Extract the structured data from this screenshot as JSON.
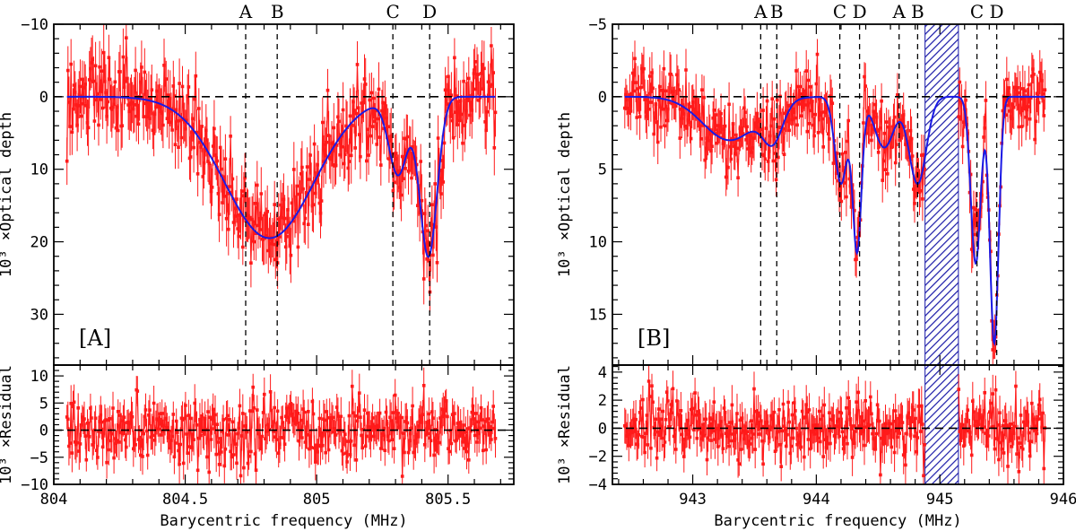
{
  "chart_data": [
    {
      "type": "line",
      "panel_label": "[A]",
      "xlabel": "Barycentric frequency (MHz)",
      "ylabel_main": "10³ ×Optical depth",
      "ylabel_resid": "10³ ×Residual",
      "xlim": [
        804.0,
        805.75
      ],
      "ylim_main": [
        -10,
        37
      ],
      "ylim_resid": [
        -10,
        12
      ],
      "xticks": [
        804,
        804.5,
        805,
        805.5
      ],
      "xtick_labels": [
        "804",
        "804.5",
        "805",
        "805.5"
      ],
      "yticks_main": [
        -10,
        0,
        10,
        20,
        30
      ],
      "ytick_labels_main": [
        "−10",
        "0",
        "10",
        "20",
        "30"
      ],
      "yticks_resid": [
        -10,
        -5,
        0,
        5,
        10
      ],
      "ytick_labels_resid": [
        "−10",
        "−5",
        "0",
        "5",
        "10"
      ],
      "data_range": [
        804.05,
        805.68
      ],
      "noise_main": 3.2,
      "noise_resid": 3.0,
      "components": [
        {
          "name": "A",
          "x": 804.73
        },
        {
          "name": "B",
          "x": 804.85
        },
        {
          "name": "C",
          "x": 805.29
        },
        {
          "name": "D",
          "x": 805.43
        }
      ],
      "model": [
        {
          "center": 804.82,
          "depth": 19.5,
          "sigma": 0.17
        },
        {
          "center": 805.31,
          "depth": 10.5,
          "sigma": 0.035
        },
        {
          "center": 805.425,
          "depth": 22.0,
          "sigma": 0.033
        }
      ],
      "masked_region": null
    },
    {
      "type": "line",
      "panel_label": "[B]",
      "xlabel": "Barycentric frequency (MHz)",
      "ylabel_main": "10³ ×Optical depth",
      "ylabel_resid": "10³ ×Residual",
      "xlim": [
        942.35,
        946.0
      ],
      "ylim_main": [
        -5,
        18.5
      ],
      "ylim_resid": [
        -4,
        4.5
      ],
      "xticks": [
        943,
        944,
        945,
        946
      ],
      "xtick_labels": [
        "943",
        "944",
        "945",
        "946"
      ],
      "yticks_main": [
        -5,
        0,
        5,
        10,
        15
      ],
      "ytick_labels_main": [
        "−5",
        "0",
        "5",
        "10",
        "15"
      ],
      "yticks_resid": [
        -4,
        -2,
        0,
        2,
        4
      ],
      "ytick_labels_resid": [
        "−4",
        "−2",
        "0",
        "2",
        "4"
      ],
      "data_range": [
        942.45,
        945.85
      ],
      "noise_main": 1.3,
      "noise_resid": 1.2,
      "components": [
        {
          "name": "A",
          "x": 943.55
        },
        {
          "name": "B",
          "x": 943.68
        },
        {
          "name": "C",
          "x": 944.19
        },
        {
          "name": "D",
          "x": 944.35
        },
        {
          "name": "A",
          "x": 944.67
        },
        {
          "name": "B",
          "x": 944.82
        },
        {
          "name": "C",
          "x": 945.3
        },
        {
          "name": "D",
          "x": 945.46
        }
      ],
      "model": [
        {
          "center": 943.3,
          "depth": 3.0,
          "sigma": 0.22
        },
        {
          "center": 943.65,
          "depth": 2.5,
          "sigma": 0.08
        },
        {
          "center": 944.2,
          "depth": 6.0,
          "sigma": 0.05
        },
        {
          "center": 944.33,
          "depth": 10.5,
          "sigma": 0.035
        },
        {
          "center": 944.55,
          "depth": 3.5,
          "sigma": 0.08
        },
        {
          "center": 944.82,
          "depth": 6.0,
          "sigma": 0.07
        },
        {
          "center": 945.29,
          "depth": 11.5,
          "sigma": 0.04
        },
        {
          "center": 945.44,
          "depth": 17.0,
          "sigma": 0.035
        }
      ],
      "masked_region": [
        944.88,
        945.15
      ]
    }
  ]
}
